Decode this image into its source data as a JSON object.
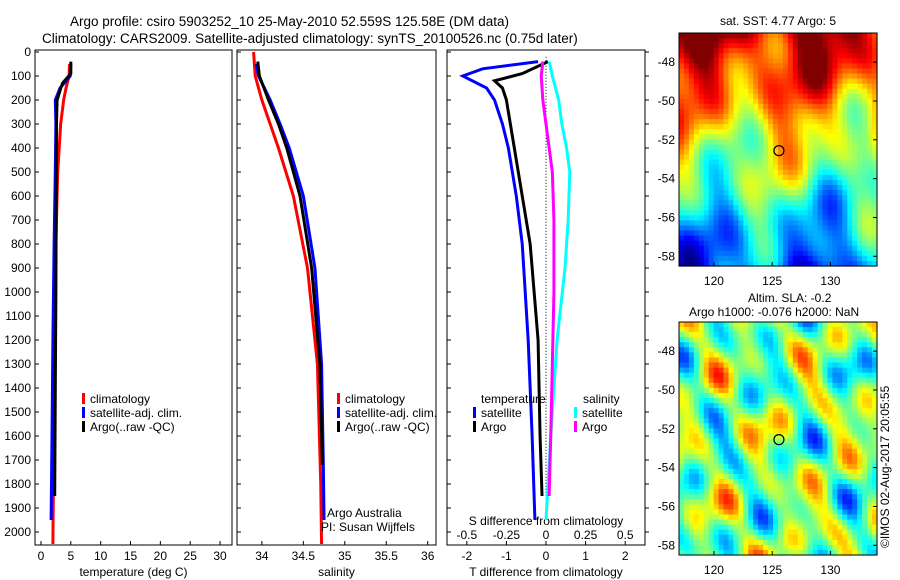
{
  "title": {
    "line1": "Argo profile: csiro 5903252_10 25-May-2010 52.559S 125.58E (DM data)",
    "line2": "Climatology: CARS2009. Satellite-adjusted climatology: synTS_20100526.nc (0.75d later)"
  },
  "timestamp": "©IMOS 02-Aug-2017 20:05:55",
  "colors": {
    "climatology": "#ff0000",
    "satellite": "#0000ff",
    "argo": "#000000",
    "sal_satellite": "#00ffff",
    "sal_argo": "#ff00ff"
  },
  "chart_data": [
    {
      "type": "line",
      "xlabel": "temperature (deg C)",
      "ylabel": "",
      "xlim": [
        -1,
        32
      ],
      "ylim": [
        2050,
        0
      ],
      "xticks": [
        "0",
        "5",
        "10",
        "15",
        "20",
        "25",
        "30"
      ],
      "yticks": [
        "0",
        "100",
        "200",
        "300",
        "400",
        "500",
        "600",
        "700",
        "800",
        "900",
        "1000",
        "1100",
        "1200",
        "1300",
        "1400",
        "1500",
        "1600",
        "1700",
        "1800",
        "1900",
        "2000"
      ],
      "legend": [
        "climatology",
        "satellite-adj. clim.",
        "Argo(..raw -QC)"
      ],
      "legend_position": "center-right",
      "series": [
        {
          "name": "climatology",
          "depth": [
            50,
            100,
            150,
            200,
            300,
            500,
            800,
            1200,
            1600,
            2050
          ],
          "values": [
            4.8,
            4.7,
            4.2,
            3.8,
            3.3,
            2.8,
            2.5,
            2.3,
            2.15,
            2.0
          ]
        },
        {
          "name": "satellite-adj. clim.",
          "depth": [
            50,
            100,
            150,
            200,
            300,
            500,
            800,
            1200,
            1600,
            1950
          ],
          "values": [
            5.0,
            4.9,
            3.2,
            2.4,
            2.5,
            2.4,
            2.2,
            2.0,
            1.85,
            1.7
          ]
        },
        {
          "name": "Argo(..raw -QC)",
          "depth": [
            40,
            90,
            130,
            160,
            200,
            300,
            600,
            1000,
            1400,
            1850
          ],
          "values": [
            5.0,
            5.0,
            3.6,
            3.2,
            2.7,
            2.6,
            2.55,
            2.5,
            2.4,
            2.3
          ]
        }
      ]
    },
    {
      "type": "line",
      "xlabel": "salinity",
      "xlim": [
        33.7,
        36.1
      ],
      "ylim": [
        2050,
        0
      ],
      "xticks": [
        "34",
        "34.5",
        "35",
        "35.5",
        "36"
      ],
      "legend": [
        "climatology",
        "satellite-adj. clim.",
        "Argo(..raw -QC)"
      ],
      "annotation": [
        "Argo Australia",
        "PI: Susan Wijffels"
      ],
      "series": [
        {
          "name": "climatology",
          "depth": [
            0,
            100,
            200,
            300,
            400,
            600,
            900,
            1300,
            1800,
            2050
          ],
          "values": [
            33.9,
            33.92,
            34.0,
            34.1,
            34.2,
            34.38,
            34.55,
            34.67,
            34.71,
            34.72
          ]
        },
        {
          "name": "satellite-adj. clim.",
          "depth": [
            50,
            100,
            200,
            300,
            400,
            600,
            900,
            1300,
            1700,
            1950
          ],
          "values": [
            33.93,
            33.96,
            34.1,
            34.22,
            34.33,
            34.5,
            34.64,
            34.72,
            34.74,
            34.75
          ]
        },
        {
          "name": "Argo(..raw -QC)",
          "depth": [
            40,
            100,
            200,
            300,
            400,
            600,
            900,
            1300,
            1720
          ],
          "values": [
            33.95,
            33.97,
            34.08,
            34.2,
            34.3,
            34.46,
            34.6,
            34.7,
            34.73
          ]
        }
      ]
    },
    {
      "type": "line",
      "xlabel": "T difference from climatology",
      "x2label": "S difference from climatology",
      "xlim": [
        -2.5,
        2.5
      ],
      "ylim": [
        2050,
        0
      ],
      "xticks": [
        "-2",
        "-1",
        "0",
        "1",
        "2"
      ],
      "x2ticks": [
        "-0.5",
        "-0.25",
        "0",
        "0.25",
        "0.5"
      ],
      "x2lim": [
        -0.625,
        0.625
      ],
      "legend_headers": [
        "temperature",
        "salinity"
      ],
      "legend": [
        "satellite",
        "Argo",
        "satellite",
        "Argo"
      ],
      "series": [
        {
          "name": "temperature satellite",
          "axis": "T",
          "depth": [
            40,
            70,
            100,
            150,
            200,
            300,
            400,
            600,
            800,
            1200,
            1600,
            1950
          ],
          "values": [
            -0.2,
            -1.6,
            -2.1,
            -1.5,
            -1.3,
            -1.1,
            -0.95,
            -0.75,
            -0.6,
            -0.45,
            -0.35,
            -0.28
          ]
        },
        {
          "name": "temperature Argo",
          "axis": "T",
          "depth": [
            40,
            90,
            120,
            150,
            200,
            300,
            400,
            600,
            800,
            1200,
            1600,
            1850
          ],
          "values": [
            0.05,
            -0.6,
            -1.3,
            -1.1,
            -1.0,
            -0.9,
            -0.8,
            -0.6,
            -0.4,
            -0.2,
            -0.15,
            -0.1
          ]
        },
        {
          "name": "salinity satellite",
          "axis": "S",
          "depth": [
            40,
            100,
            200,
            300,
            400,
            500,
            700,
            900,
            1200,
            1600,
            1950
          ],
          "values": [
            0.02,
            0.04,
            0.08,
            0.1,
            0.13,
            0.15,
            0.14,
            0.12,
            0.07,
            0.03,
            0.0
          ]
        },
        {
          "name": "salinity Argo",
          "axis": "S",
          "depth": [
            40,
            100,
            200,
            300,
            500,
            700,
            1000,
            1300,
            1600,
            1850
          ],
          "values": [
            -0.02,
            -0.03,
            -0.02,
            0.0,
            0.04,
            0.05,
            0.05,
            0.04,
            0.03,
            0.02
          ]
        }
      ]
    },
    {
      "type": "heatmap",
      "title": "sat. SST: 4.77 Argo: 5",
      "xlim": [
        117,
        134
      ],
      "ylim": [
        -58.5,
        -46.5
      ],
      "xticks": [
        "120",
        "125",
        "130"
      ],
      "yticks": [
        "-48",
        "-50",
        "-52",
        "-54",
        "-56",
        "-58"
      ],
      "marker": {
        "lon": 125.58,
        "lat": -52.559
      }
    },
    {
      "type": "heatmap",
      "title": "Altim. SLA: -0.2",
      "subtitle": "Argo h1000: -0.076 h2000: NaN",
      "xlim": [
        117,
        134
      ],
      "ylim": [
        -58.5,
        -46.5
      ],
      "xticks": [
        "120",
        "125",
        "130"
      ],
      "yticks": [
        "-48",
        "-50",
        "-52",
        "-54",
        "-56",
        "-58"
      ],
      "marker": {
        "lon": 125.58,
        "lat": -52.559
      }
    }
  ]
}
